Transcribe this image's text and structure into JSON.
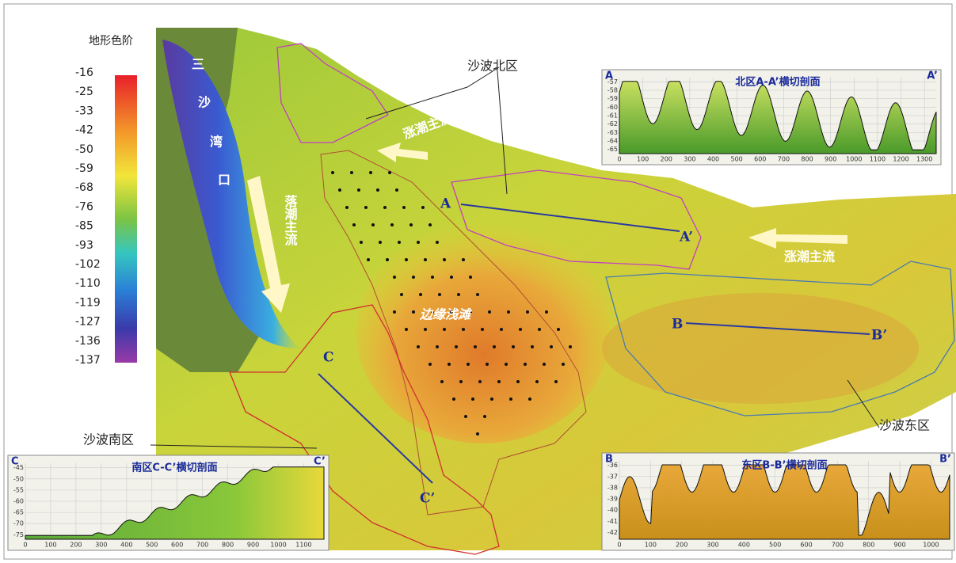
{
  "legend": {
    "title": "地形色阶",
    "labels": [
      "-16",
      "-25",
      "-33",
      "-42",
      "-50",
      "-59",
      "-68",
      "-76",
      "-85",
      "-93",
      "-102",
      "-110",
      "-119",
      "-127",
      "-136",
      "-137"
    ]
  },
  "map_labels": {
    "bay": [
      "三",
      "沙",
      "湾",
      "口"
    ],
    "ebb": "落潮主流",
    "flood_north": "涨潮主流",
    "flood_east": "涨潮主流",
    "shoal": "边缘浅滩",
    "north_zone": "沙波北区",
    "east_zone": "沙波东区",
    "south_zone": "沙波南区",
    "a": "A",
    "a2": "A’",
    "b": "B",
    "b2": "B’",
    "c": "C",
    "c2": "C’"
  },
  "profiles": [
    {
      "title": "北区A-A’横切剖面",
      "start": "A",
      "end": "A’",
      "xlim": [
        0,
        1350
      ],
      "ylim": [
        -65.5,
        -56.5
      ],
      "xticks": [
        0,
        100,
        200,
        300,
        400,
        500,
        600,
        700,
        800,
        900,
        1000,
        1100,
        1200,
        1300
      ],
      "yticks": [
        -57,
        -58,
        -59,
        -60,
        -61,
        -62,
        -63,
        -64,
        -65
      ]
    },
    {
      "title": "东区B-B’横切剖面",
      "start": "B",
      "end": "B’",
      "xlim": [
        0,
        1060
      ],
      "ylim": [
        -42.6,
        -35.6
      ],
      "xticks": [
        0,
        100,
        200,
        300,
        400,
        500,
        600,
        700,
        800,
        900,
        1000
      ],
      "yticks": [
        -36,
        -37,
        -38,
        -39,
        -40,
        -41,
        -42
      ]
    },
    {
      "title": "南区C-C’横切剖面",
      "start": "C",
      "end": "C’",
      "xlim": [
        0,
        1180
      ],
      "ylim": [
        -77,
        -43
      ],
      "xticks": [
        0,
        100,
        200,
        300,
        400,
        500,
        600,
        700,
        800,
        900,
        1000,
        1100
      ],
      "yticks": [
        -45,
        -50,
        -55,
        -60,
        -65,
        -70,
        -75
      ]
    }
  ]
}
